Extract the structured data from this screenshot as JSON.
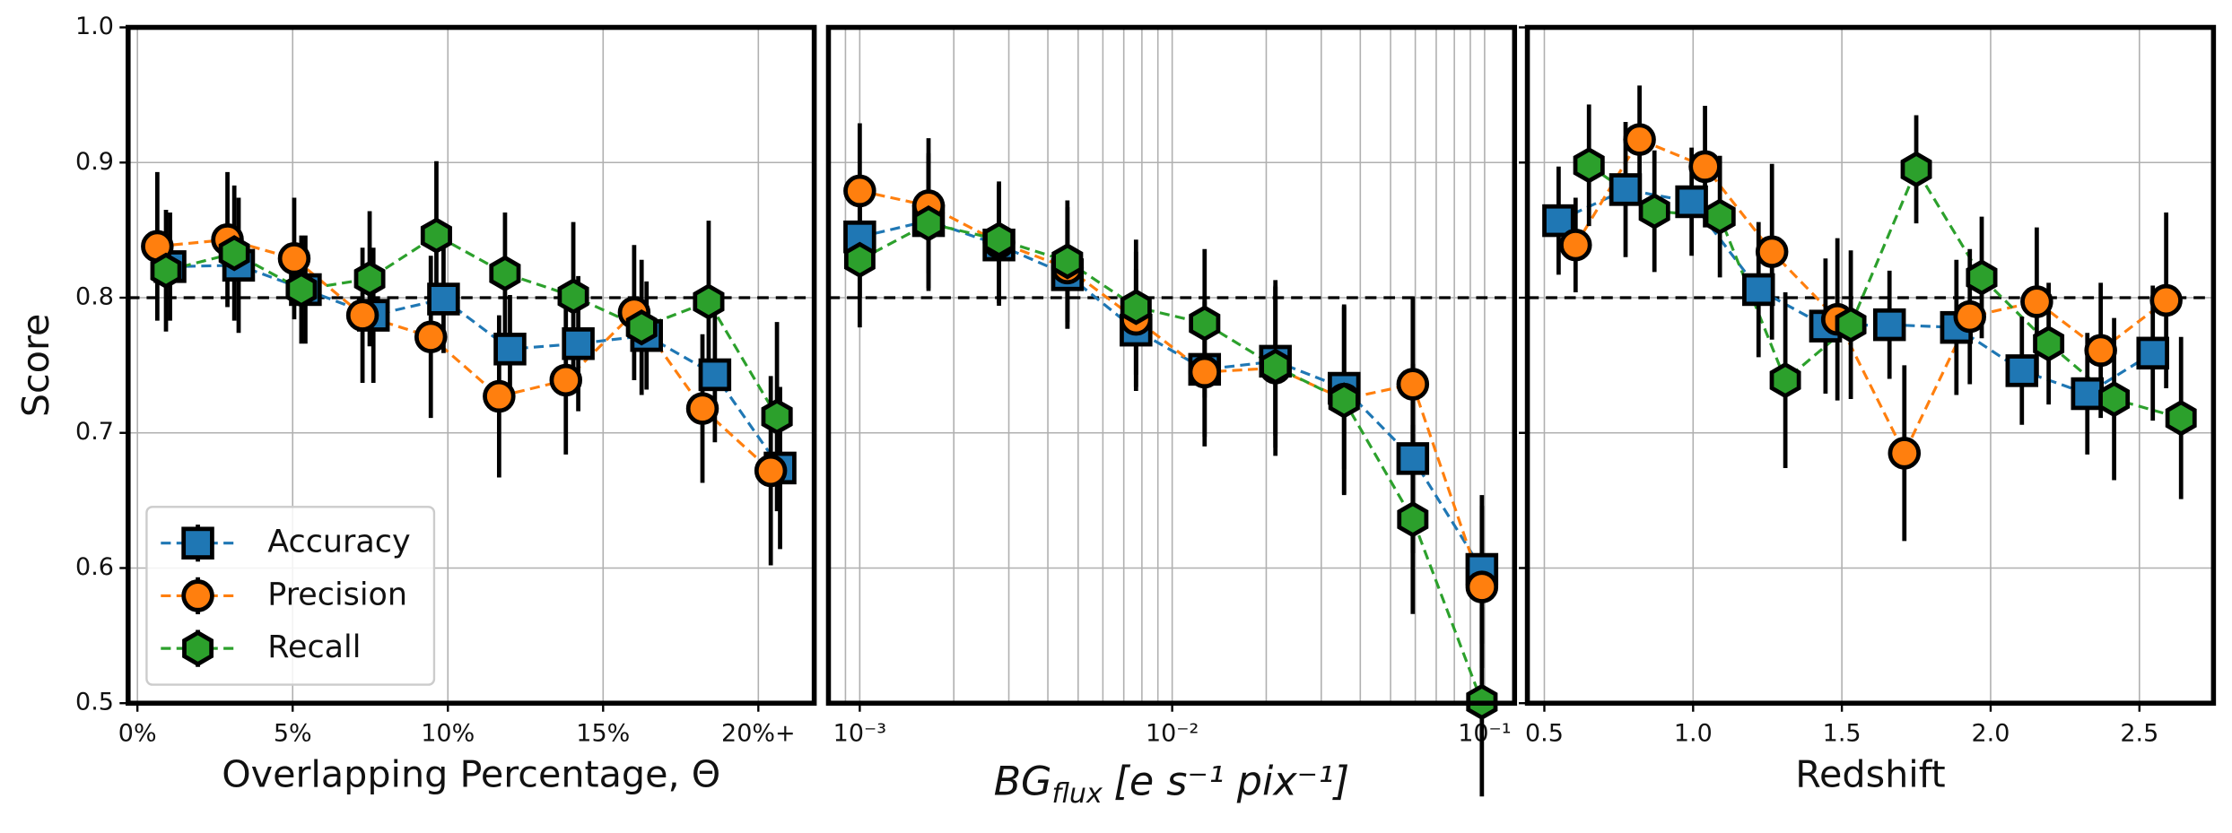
{
  "chart_data": [
    {
      "type": "line",
      "ylabel": "Score",
      "xlabel": "Overlapping Percentage, Θ",
      "x": [
        1.05,
        3.26,
        5.41,
        7.6,
        9.86,
        12.0,
        14.2,
        16.4,
        18.6,
        20.7
      ],
      "xlim": [
        -0.3,
        21.8
      ],
      "ylim": [
        0.5,
        1.0
      ],
      "xticks": [
        {
          "value": 0,
          "label": "0%"
        },
        {
          "value": 5,
          "label": "5%"
        },
        {
          "value": 10,
          "label": "10%"
        },
        {
          "value": 15,
          "label": "15%"
        },
        {
          "value": 20,
          "label": "20%+"
        }
      ],
      "yticks": [
        0.5,
        0.6,
        0.7,
        0.8,
        0.9,
        {
          "value": 1,
          "label": "1.0"
        }
      ],
      "ytick_labels": true,
      "grid": true,
      "hline": 0.8,
      "legend": "lower left",
      "series": [
        {
          "name": "Accuracy",
          "marker": "square",
          "color": "#1f77b4",
          "x": [
            1.05,
            3.26,
            5.41,
            7.6,
            9.86,
            12.0,
            14.2,
            16.4,
            18.6,
            20.7
          ],
          "values": [
            0.823,
            0.824,
            0.806,
            0.787,
            0.799,
            0.762,
            0.766,
            0.772,
            0.743,
            0.674
          ],
          "errors": [
            0.04,
            0.05,
            0.04,
            0.05,
            0.04,
            0.04,
            0.05,
            0.04,
            0.05,
            0.06
          ]
        },
        {
          "name": "Precision",
          "marker": "circle",
          "color": "#ff7f0e",
          "x": [
            0.64,
            2.9,
            5.05,
            7.25,
            9.45,
            11.65,
            13.8,
            16.0,
            18.2,
            20.4
          ],
          "values": [
            0.838,
            0.843,
            0.829,
            0.787,
            0.771,
            0.727,
            0.739,
            0.789,
            0.718,
            0.672
          ],
          "errors": [
            0.055,
            0.05,
            0.045,
            0.05,
            0.06,
            0.06,
            0.055,
            0.05,
            0.055,
            0.07
          ]
        },
        {
          "name": "Recall",
          "marker": "hexagon",
          "color": "#2ca02c",
          "x": [
            0.92,
            3.12,
            5.28,
            7.48,
            9.63,
            11.84,
            14.04,
            16.24,
            18.4,
            20.6
          ],
          "values": [
            0.82,
            0.833,
            0.806,
            0.814,
            0.846,
            0.818,
            0.801,
            0.778,
            0.797,
            0.712
          ],
          "errors": [
            0.045,
            0.05,
            0.04,
            0.05,
            0.055,
            0.045,
            0.055,
            0.05,
            0.06,
            0.07
          ]
        }
      ]
    },
    {
      "type": "line",
      "log_x": true,
      "xlabel": {
        "base": "BG",
        "sub": "flux",
        "unit": "[e s⁻¹ pix⁻¹]"
      },
      "xlim": [
        0.000794,
        0.1247
      ],
      "ylim": [
        0.5,
        1.0
      ],
      "xticks": [
        {
          "value": 0.001,
          "label": "10⁻³"
        },
        {
          "value": 0.01,
          "label": "10⁻²"
        },
        {
          "value": 0.1,
          "label": "10⁻¹"
        }
      ],
      "minor_xticks": [
        0.0008,
        0.0009,
        0.002,
        0.003,
        0.004,
        0.005,
        0.006,
        0.007,
        0.008,
        0.009,
        0.02,
        0.03,
        0.04,
        0.05,
        0.06,
        0.07,
        0.08,
        0.09
      ],
      "yticks": [
        0.5,
        0.6,
        0.7,
        0.8,
        0.9,
        {
          "value": 1,
          "label": "1.0"
        }
      ],
      "ytick_labels": false,
      "grid": true,
      "hline": 0.8,
      "series": [
        {
          "marker": "square",
          "color": "#1f77b4",
          "x": [
            0.001,
            0.00166,
            0.00279,
            0.00462,
            0.00766,
            0.0127,
            0.0214,
            0.0355,
            0.0589,
            0.098
          ],
          "values": [
            0.845,
            0.857,
            0.839,
            0.817,
            0.776,
            0.747,
            0.753,
            0.733,
            0.681,
            0.599
          ],
          "errors": [
            0.045,
            0.05,
            0.045,
            0.04,
            0.045,
            0.05,
            0.055,
            0.06,
            0.07,
            0.055
          ]
        },
        {
          "marker": "circle",
          "color": "#ff7f0e",
          "x": [
            0.001,
            0.00166,
            0.00279,
            0.00462,
            0.00766,
            0.0127,
            0.0214,
            0.0355,
            0.0589,
            0.098
          ],
          "values": [
            0.879,
            0.868,
            0.841,
            0.822,
            0.784,
            0.745,
            0.748,
            0.725,
            0.736,
            0.586
          ],
          "errors": [
            0.05,
            0.05,
            0.045,
            0.045,
            0.05,
            0.055,
            0.065,
            0.07,
            0.065,
            0.06
          ]
        },
        {
          "marker": "hexagon",
          "color": "#2ca02c",
          "x": [
            0.001,
            0.00166,
            0.00279,
            0.00462,
            0.00766,
            0.0127,
            0.0214,
            0.0355,
            0.0589,
            0.098
          ],
          "values": [
            0.828,
            0.855,
            0.843,
            0.827,
            0.793,
            0.781,
            0.749,
            0.724,
            0.636,
            0.501
          ],
          "errors": [
            0.05,
            0.05,
            0.04,
            0.045,
            0.05,
            0.055,
            0.06,
            0.07,
            0.07,
            0.07
          ]
        }
      ]
    },
    {
      "type": "line",
      "xlabel": "Redshift",
      "xlim": [
        0.443,
        2.749
      ],
      "ylim": [
        0.5,
        1.0
      ],
      "xticks": [
        0.5,
        {
          "value": 1,
          "label": "1.0"
        },
        1.5,
        {
          "value": 2,
          "label": "2.0"
        },
        2.5
      ],
      "yticks": [
        0.5,
        0.6,
        0.7,
        0.8,
        0.9,
        {
          "value": 1,
          "label": "1.0"
        }
      ],
      "ytick_labels": false,
      "grid": true,
      "hline": 0.8,
      "series": [
        {
          "marker": "square",
          "color": "#1f77b4",
          "x": [
            0.548,
            0.773,
            0.995,
            1.22,
            1.445,
            1.66,
            1.885,
            2.105,
            2.325,
            2.545
          ],
          "values": [
            0.857,
            0.88,
            0.871,
            0.806,
            0.779,
            0.78,
            0.778,
            0.746,
            0.729,
            0.759
          ],
          "errors": [
            0.04,
            0.05,
            0.04,
            0.05,
            0.05,
            0.04,
            0.05,
            0.04,
            0.045,
            0.05
          ]
        },
        {
          "marker": "circle",
          "color": "#ff7f0e",
          "x": [
            0.605,
            0.82,
            1.04,
            1.265,
            1.485,
            1.71,
            1.93,
            2.155,
            2.37,
            2.59
          ],
          "values": [
            0.839,
            0.917,
            0.897,
            0.834,
            0.784,
            0.685,
            0.786,
            0.797,
            0.761,
            0.798
          ],
          "errors": [
            0.035,
            0.04,
            0.045,
            0.065,
            0.06,
            0.065,
            0.05,
            0.055,
            0.05,
            0.065
          ]
        },
        {
          "marker": "hexagon",
          "color": "#2ca02c",
          "x": [
            0.65,
            0.87,
            1.09,
            1.31,
            1.53,
            1.75,
            1.97,
            2.195,
            2.415,
            2.64
          ],
          "values": [
            0.898,
            0.864,
            0.86,
            0.739,
            0.78,
            0.895,
            0.815,
            0.766,
            0.725,
            0.711
          ],
          "errors": [
            0.045,
            0.045,
            0.045,
            0.065,
            0.055,
            0.04,
            0.045,
            0.045,
            0.06,
            0.06
          ]
        }
      ]
    }
  ]
}
